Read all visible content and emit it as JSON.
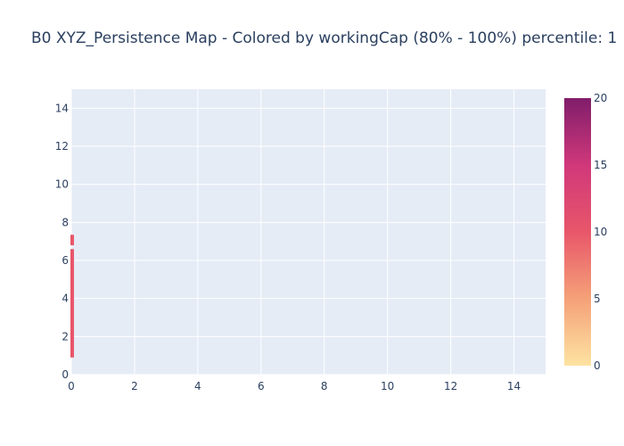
{
  "chart_data": {
    "type": "bar",
    "title": "B0 XYZ_Persistence Map - Colored by workingCap (80% - 100%) percentile: 1",
    "xlabel": "",
    "ylabel": "",
    "xlim": [
      0,
      15
    ],
    "ylim": [
      0,
      15
    ],
    "xticks": [
      "0",
      "2",
      "4",
      "6",
      "8",
      "10",
      "12",
      "14"
    ],
    "yticks": [
      "0",
      "2",
      "4",
      "6",
      "8",
      "10",
      "12",
      "14"
    ],
    "grid": true,
    "segments": [
      {
        "x": 0,
        "y_start": 0.9,
        "y_end": 6.6,
        "value": 10
      },
      {
        "x": 0,
        "y_start": 6.8,
        "y_end": 7.35,
        "value": 10
      }
    ],
    "colorbar": {
      "range": [
        0,
        20
      ],
      "ticks": [
        "0",
        "5",
        "10",
        "15",
        "20"
      ],
      "colorscale": [
        "#fde3a2",
        "#f5a178",
        "#e8566a",
        "#d0387a",
        "#801d6b"
      ]
    },
    "colors": {
      "plot_bg": "#e5ecf6",
      "grid": "#ffffff",
      "text": "#2a3f5f"
    }
  }
}
